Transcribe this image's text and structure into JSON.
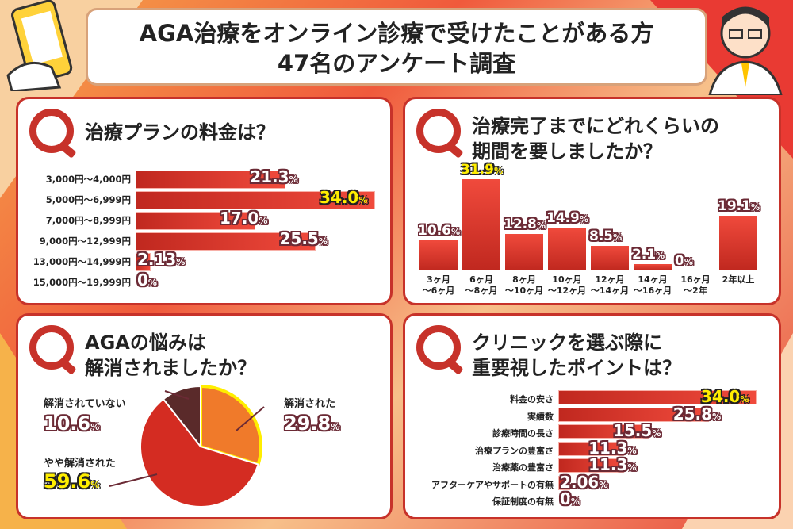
{
  "header": {
    "title_line1": "AGA治療をオンライン診療で受けたことがある方",
    "title_line2": "47名のアンケート調査"
  },
  "colors": {
    "bar": "#d9342b",
    "highlight": "#ffee00",
    "panel_border": "#c7322a",
    "pie_resolved": "#f07a2a",
    "pie_somewhat": "#d42c22",
    "pie_not": "#5a2a2a"
  },
  "chart_data": [
    {
      "type": "bar",
      "orientation": "horizontal",
      "title": "治療プランの料金は？",
      "categories": [
        "3,000円〜4,000円",
        "5,000円〜6,999円",
        "7,000円〜8,999円",
        "9,000円〜12,999円",
        "13,000円〜14,999円",
        "15,000円〜19,999円"
      ],
      "values": [
        21.3,
        34.0,
        17.0,
        25.5,
        2.13,
        0
      ],
      "labels": [
        "21.3",
        "34.0",
        "17.0",
        "25.5",
        "2.13",
        "0"
      ],
      "unit": "%",
      "highlight_index": 1
    },
    {
      "type": "bar",
      "orientation": "vertical",
      "title_line1": "治療完了までにどれくらいの",
      "title_line2": "期間を要しましたか？",
      "categories": [
        [
          "3ヶ月",
          "〜6ヶ月"
        ],
        [
          "6ヶ月",
          "〜8ヶ月"
        ],
        [
          "8ヶ月",
          "〜10ヶ月"
        ],
        [
          "10ヶ月",
          "〜12ヶ月"
        ],
        [
          "12ヶ月",
          "〜14ヶ月"
        ],
        [
          "14ヶ月",
          "〜16ヶ月"
        ],
        [
          "16ヶ月",
          "〜2年"
        ],
        [
          "2年以上",
          ""
        ]
      ],
      "values": [
        10.6,
        31.9,
        12.8,
        14.9,
        8.5,
        2.1,
        0,
        19.1
      ],
      "labels": [
        "10.6",
        "31.9",
        "12.8",
        "14.9",
        "8.5",
        "2.1",
        "0",
        "19.1"
      ],
      "unit": "%",
      "highlight_index": 1
    },
    {
      "type": "pie",
      "title_line1": "AGAの悩みは",
      "title_line2": "解消されましたか？",
      "categories": [
        "解消された",
        "やや解消された",
        "解消されていない"
      ],
      "values": [
        29.8,
        59.6,
        10.6
      ],
      "labels": [
        "29.8",
        "59.6",
        "10.6"
      ],
      "unit": "%",
      "highlight_index": 1
    },
    {
      "type": "bar",
      "orientation": "horizontal",
      "title_line1": "クリニックを選ぶ際に",
      "title_line2": "重要視したポイントは？",
      "categories": [
        "料金の安さ",
        "実績数",
        "診療時間の長さ",
        "治療プランの豊富さ",
        "治療薬の豊富さ",
        "アフターケアやサポートの有無",
        "保証制度の有無"
      ],
      "values": [
        34.0,
        25.8,
        15.5,
        11.3,
        11.3,
        2.06,
        0
      ],
      "labels": [
        "34.0",
        "25.8",
        "15.5",
        "11.3",
        "11.3",
        "2.06",
        "0"
      ],
      "unit": "%",
      "highlight_index": 0
    }
  ]
}
